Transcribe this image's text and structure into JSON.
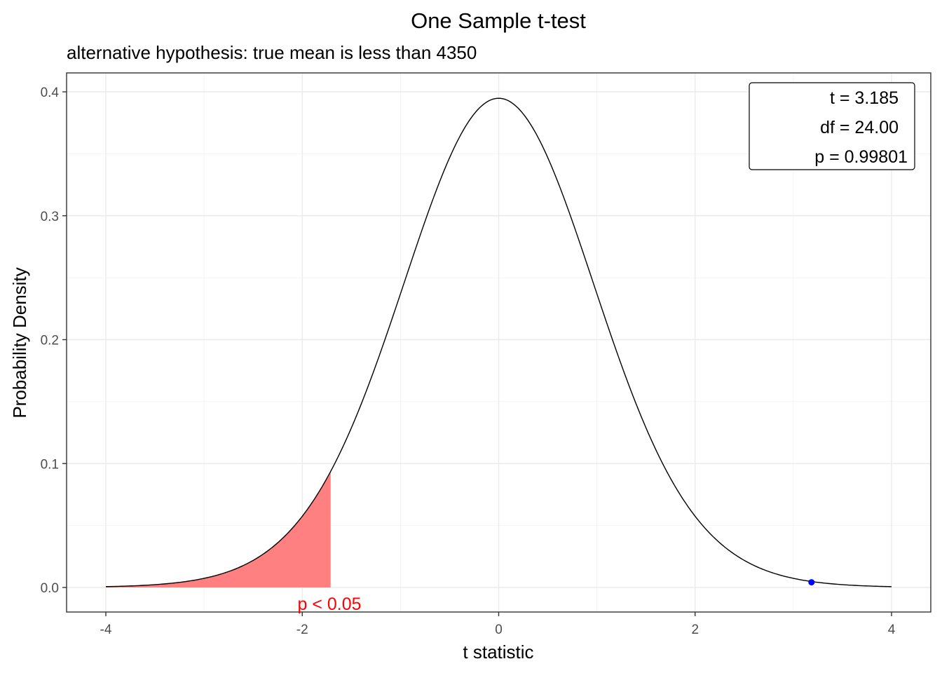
{
  "chart_data": {
    "type": "area",
    "title": "One Sample t-test",
    "subtitle": "alternative hypothesis: true mean is less than 4350",
    "xlabel": "t statistic",
    "ylabel": "Probability Density",
    "xlim": [
      -4,
      4
    ],
    "ylim": [
      0,
      0.4
    ],
    "x_ticks": [
      -4,
      -2,
      0,
      2,
      4
    ],
    "x_tick_labels": [
      "-4",
      "-2",
      "0",
      "2",
      "4"
    ],
    "y_ticks": [
      0.0,
      0.1,
      0.2,
      0.3,
      0.4
    ],
    "y_tick_labels": [
      "0.0",
      "0.1",
      "0.2",
      "0.3",
      "0.4"
    ],
    "grid": true,
    "distribution": "Student t",
    "df": 24,
    "series": [
      {
        "curve": "t density",
        "x_range": [
          -4,
          4
        ],
        "color": "#000000"
      }
    ],
    "rejection_region": {
      "x_range": [
        -4,
        -1.711
      ],
      "color": "#ff8080",
      "label": "p < 0.05",
      "label_color": "#ff0000"
    },
    "observed_point": {
      "x": 3.185,
      "y": 0.0042,
      "color": "#0000ff"
    },
    "stats_box": {
      "placement": "top-right",
      "lines": [
        "t = 3.185",
        "df = 24.00",
        "p = 0.99801"
      ]
    }
  }
}
